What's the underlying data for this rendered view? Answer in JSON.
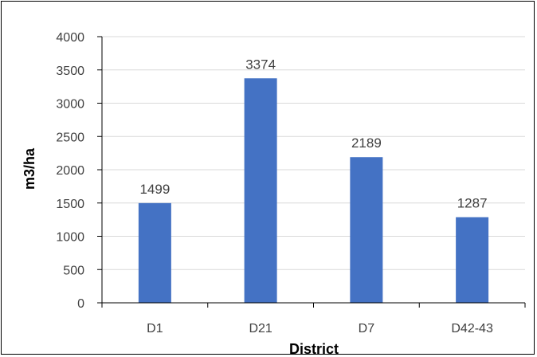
{
  "chart_data": {
    "type": "bar",
    "categories": [
      "D1",
      "D21",
      "D7",
      "D42-43"
    ],
    "values": [
      1499,
      3374,
      2189,
      1287
    ],
    "data_labels": [
      "1499",
      "3374",
      "2189",
      "1287"
    ],
    "title": "",
    "xlabel": "District",
    "ylabel": "m3/ha",
    "ylim": [
      0,
      4000
    ],
    "yticks": [
      0,
      500,
      1000,
      1500,
      2000,
      2500,
      3000,
      3500,
      4000
    ],
    "grid": true,
    "legend": "none",
    "colors": {
      "bar": "#4472C4",
      "grid": "#D9D9D9",
      "axis": "#000000"
    }
  }
}
